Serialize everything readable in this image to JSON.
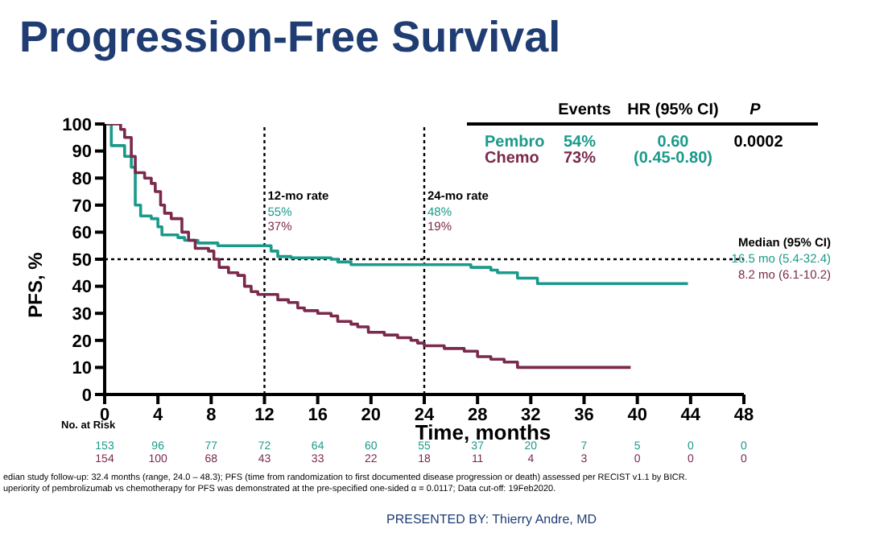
{
  "chart_data": {
    "type": "step",
    "title": "Progression-Free Survival",
    "xlabel": "Time, months",
    "ylabel": "PFS, %",
    "xlim": [
      0,
      48
    ],
    "xticks": [
      0,
      4,
      8,
      12,
      16,
      20,
      24,
      28,
      32,
      36,
      40,
      44,
      48
    ],
    "ylim": [
      0,
      100
    ],
    "yticks": [
      0,
      10,
      20,
      30,
      40,
      50,
      60,
      70,
      80,
      90,
      100
    ],
    "legend": false,
    "line_style": "solid",
    "series": [
      {
        "name": "Pembro",
        "color": "#1a9a8a",
        "x": [
          0,
          0.5,
          1.5,
          2,
          2.3,
          2.7,
          3.5,
          4,
          4.3,
          5.5,
          6,
          7,
          8.5,
          12.5,
          13,
          14,
          17,
          17.5,
          18.5,
          27.5,
          29,
          29.5,
          31,
          32.5,
          43.8
        ],
        "values": [
          100,
          92,
          88,
          84,
          70,
          66,
          65,
          62,
          59,
          58,
          57,
          56,
          55,
          53,
          51,
          50.5,
          50,
          49,
          48,
          47,
          46,
          45,
          43,
          41,
          41
        ]
      },
      {
        "name": "Chemo",
        "color": "#7a2a4c",
        "x": [
          0,
          1,
          1.2,
          1.5,
          2,
          2.3,
          3,
          3.5,
          3.8,
          4.2,
          4.5,
          5,
          5.8,
          6.3,
          6.8,
          7.8,
          8.2,
          8.6,
          9.3,
          10,
          10.5,
          11,
          11.5,
          13,
          13.8,
          14.5,
          15,
          16,
          17,
          17.5,
          18.5,
          19,
          19.8,
          21,
          22,
          23,
          23.5,
          24,
          25.5,
          27,
          28,
          29,
          30,
          31,
          39.5
        ],
        "values": [
          100,
          100,
          98,
          95,
          88,
          82,
          80,
          78,
          75,
          70,
          67,
          65,
          60,
          57,
          54,
          53,
          50,
          47,
          45,
          44,
          40,
          38,
          37,
          35,
          34,
          32,
          31,
          30,
          29,
          27,
          26,
          25,
          23,
          22,
          21,
          20,
          19,
          18,
          17,
          16,
          14,
          13,
          12,
          10,
          10
        ]
      }
    ],
    "ref_lines": [
      {
        "axis": "y",
        "value": 50,
        "line_style": "dotted",
        "color": "#000000"
      },
      {
        "axis": "x",
        "value": 12,
        "label": "12-mo rate",
        "line_style": "dotted",
        "color": "#000000"
      },
      {
        "axis": "x",
        "value": 24,
        "label": "24-mo rate",
        "line_style": "dotted",
        "color": "#000000"
      }
    ],
    "annotations": [
      "Events",
      "HR (95% CI)",
      "P",
      "54%",
      "73%",
      "0.60",
      "(0.45-0.80)",
      "0.0002",
      "Median (95% CI)",
      "16.5 mo (5.4-32.4)",
      "8.2 mo (6.1-10.2)",
      "No. at Risk",
      "edian study follow-up: 32.4 months (range, 24.0 – 48.3); PFS (time from randomization to first documented disease progression or death) assessed per RECIST v1.1 by BICR.",
      "uperiority of pembrolizumab vs chemotherapy for PFS was demonstrated at the pre-specified one-sided α = 0.0117; Data cut-off: 19Feb2020.",
      "PRESENTED BY: Thierry Andre, MD",
      "55%",
      "37%",
      "48%",
      "19%",
      "153",
      "96",
      "77",
      "72",
      "64",
      "60",
      "55",
      "37",
      "20",
      "7",
      "5",
      "0",
      "0",
      "154",
      "100",
      "68",
      "43",
      "33",
      "22",
      "18",
      "11",
      "4",
      "3",
      "0",
      "0",
      "0"
    ]
  }
}
